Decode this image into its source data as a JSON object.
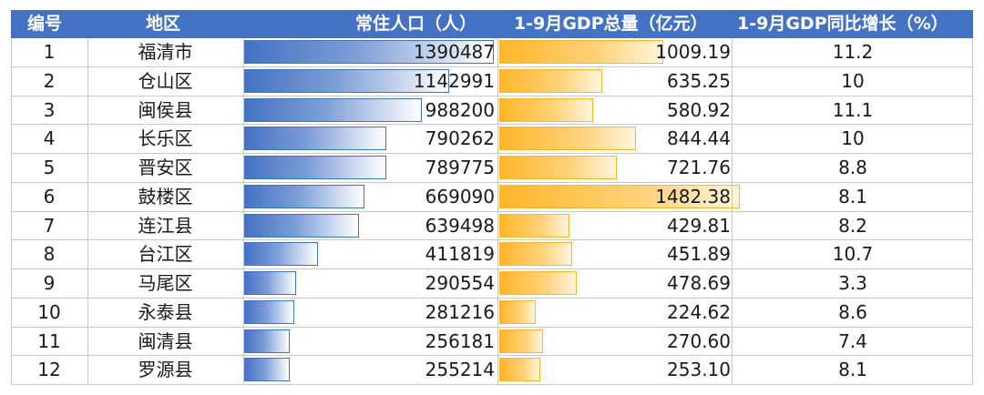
{
  "colors": {
    "header_bg": "#4472c4",
    "pop_bar": "#4472c4",
    "gdp_bar": "#ffb628"
  },
  "table": {
    "headers": [
      "编号",
      "地区",
      "常住人口（人）",
      "1-9月GDP总量（亿元）",
      "1-9月GDP同比增长（%）"
    ],
    "rows": [
      {
        "no": "1",
        "area": "福清市",
        "population": "1390487",
        "gdp": "1009.19",
        "growth": "11.2"
      },
      {
        "no": "2",
        "area": "仓山区",
        "population": "1142991",
        "gdp": "635.25",
        "growth": "10"
      },
      {
        "no": "3",
        "area": "闽侯县",
        "population": "988200",
        "gdp": "580.92",
        "growth": "11.1"
      },
      {
        "no": "4",
        "area": "长乐区",
        "population": "790262",
        "gdp": "844.44",
        "growth": "10"
      },
      {
        "no": "5",
        "area": "晋安区",
        "population": "789775",
        "gdp": "721.76",
        "growth": "8.8"
      },
      {
        "no": "6",
        "area": "鼓楼区",
        "population": "669090",
        "gdp": "1482.38",
        "growth": "8.1"
      },
      {
        "no": "7",
        "area": "连江县",
        "population": "639498",
        "gdp": "429.81",
        "growth": "8.2"
      },
      {
        "no": "8",
        "area": "台江区",
        "population": "411819",
        "gdp": "451.89",
        "growth": "10.7"
      },
      {
        "no": "9",
        "area": "马尾区",
        "population": "290554",
        "gdp": "478.69",
        "growth": "3.3"
      },
      {
        "no": "10",
        "area": "永泰县",
        "population": "281216",
        "gdp": "224.62",
        "growth": "8.6"
      },
      {
        "no": "11",
        "area": "闽清县",
        "population": "256181",
        "gdp": "270.60",
        "growth": "7.4"
      },
      {
        "no": "12",
        "area": "罗源县",
        "population": "255214",
        "gdp": "253.10",
        "growth": "8.1"
      }
    ]
  }
}
